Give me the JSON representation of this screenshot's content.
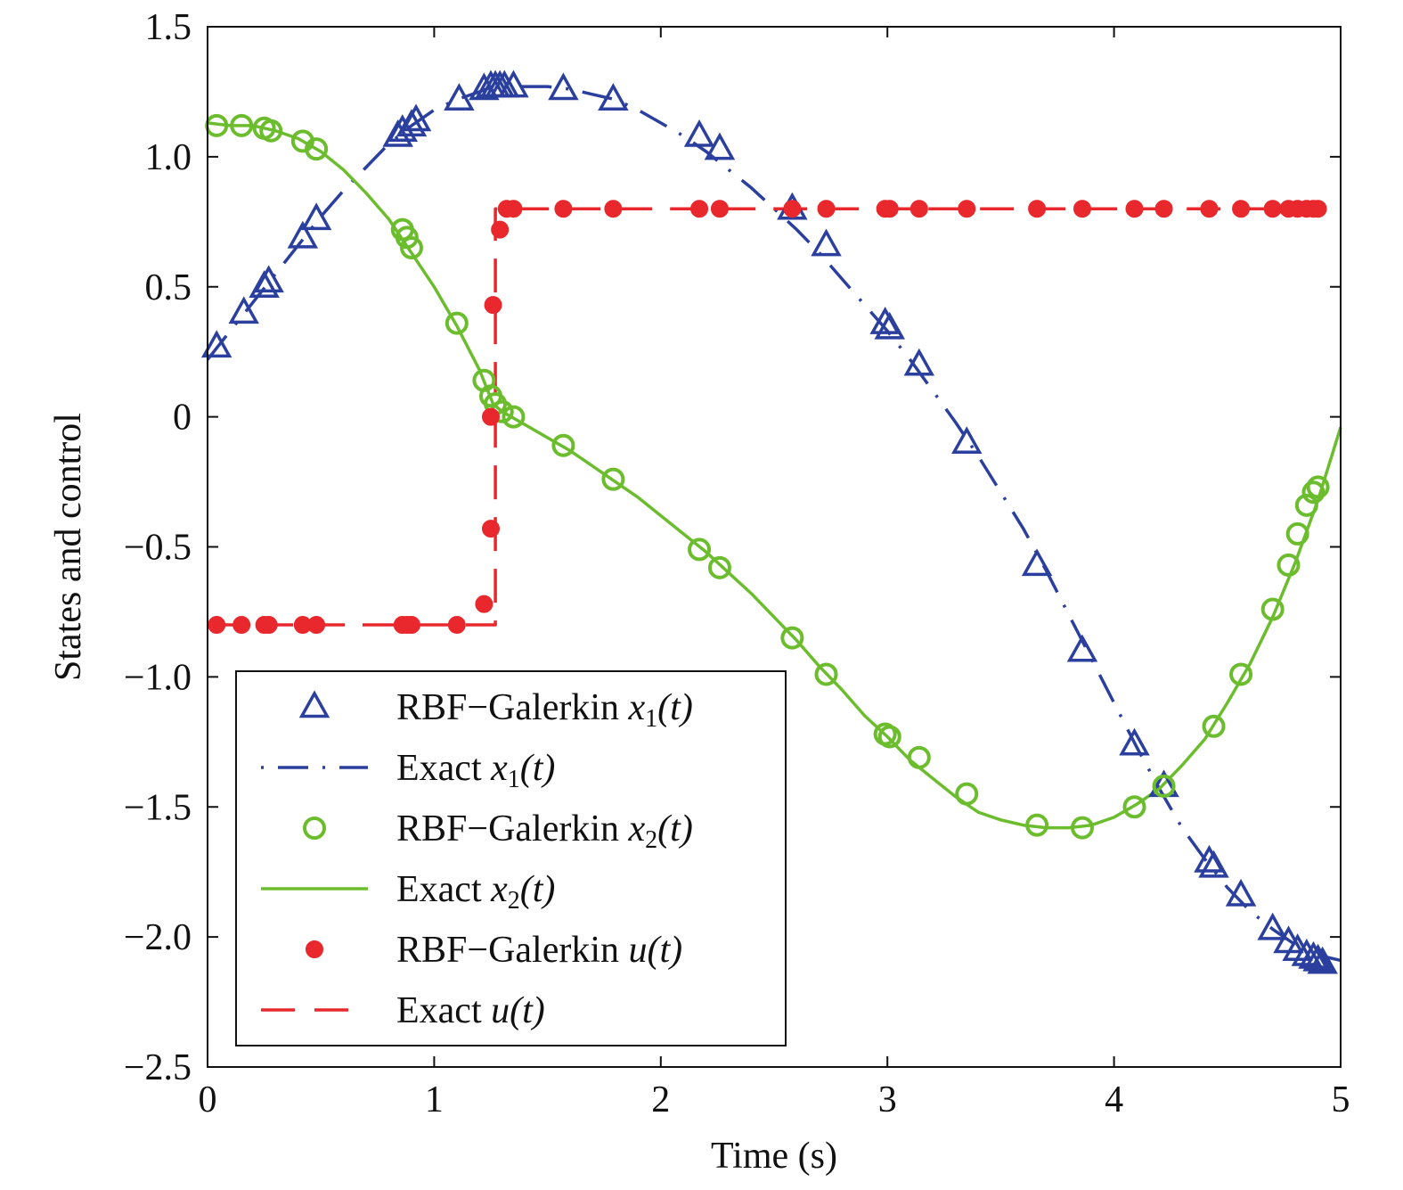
{
  "chart_data": {
    "type": "line",
    "xlabel": "Time (s)",
    "ylabel": "States and control",
    "xlim": [
      0,
      5
    ],
    "ylim": [
      -2.5,
      1.5
    ],
    "xticks": [
      0,
      1,
      2,
      3,
      4,
      5
    ],
    "xtick_labels": [
      "0",
      "1",
      "2",
      "3",
      "4",
      "5"
    ],
    "yticks": [
      1.5,
      1.0,
      0.5,
      0,
      -0.5,
      -1.0,
      -1.5,
      -2.0,
      -2.5
    ],
    "ytick_labels": [
      "1.5",
      "1.0",
      "0.5",
      "0",
      "−0.5",
      "−1.0",
      "−1.5",
      "−2.0",
      "−2.5"
    ],
    "grid": false,
    "legend_position": "bottom-left",
    "series": [
      {
        "name": "RBF−Galerkin x1(t)",
        "legend_main": "RBF−Galerkin ",
        "legend_var": "x",
        "legend_sub": "1",
        "legend_arg": "(t)",
        "style": "triangle-markers",
        "color": "#2b3f9e",
        "x": [
          0.04,
          0.16,
          0.25,
          0.27,
          0.42,
          0.48,
          0.84,
          0.86,
          0.9,
          0.92,
          1.11,
          1.22,
          1.25,
          1.27,
          1.29,
          1.31,
          1.35,
          1.57,
          1.79,
          2.17,
          2.26,
          2.58,
          2.73,
          2.99,
          3.01,
          3.14,
          3.35,
          3.66,
          3.86,
          4.09,
          4.22,
          4.42,
          4.44,
          4.56,
          4.7,
          4.77,
          4.81,
          4.85,
          4.88,
          4.9,
          4.92
        ],
        "y": [
          0.27,
          0.4,
          0.5,
          0.52,
          0.69,
          0.76,
          1.08,
          1.1,
          1.12,
          1.14,
          1.22,
          1.26,
          1.27,
          1.27,
          1.27,
          1.27,
          1.27,
          1.26,
          1.22,
          1.08,
          1.03,
          0.8,
          0.66,
          0.36,
          0.34,
          0.2,
          -0.1,
          -0.57,
          -0.9,
          -1.26,
          -1.42,
          -1.71,
          -1.73,
          -1.84,
          -1.97,
          -2.02,
          -2.05,
          -2.07,
          -2.08,
          -2.09,
          -2.1
        ]
      },
      {
        "name": "Exact x1(t)",
        "legend_main": "Exact ",
        "legend_var": "x",
        "legend_sub": "1",
        "legend_arg": "(t)",
        "style": "dash-dot",
        "color": "#2b3f9e",
        "x": [
          0,
          0.1,
          0.2,
          0.3,
          0.4,
          0.5,
          0.6,
          0.7,
          0.8,
          0.9,
          1.0,
          1.1,
          1.2,
          1.26,
          1.3,
          1.4,
          1.5,
          1.6,
          1.7,
          1.8,
          1.9,
          2.0,
          2.1,
          2.2,
          2.3,
          2.4,
          2.5,
          2.6,
          2.7,
          2.8,
          2.9,
          3.0,
          3.1,
          3.2,
          3.3,
          3.4,
          3.5,
          3.6,
          3.7,
          3.8,
          3.9,
          4.0,
          4.1,
          4.2,
          4.3,
          4.4,
          4.5,
          4.6,
          4.7,
          4.8,
          4.9,
          5.0
        ],
        "y": [
          0.22,
          0.33,
          0.44,
          0.55,
          0.66,
          0.77,
          0.87,
          0.96,
          1.05,
          1.12,
          1.18,
          1.22,
          1.25,
          1.27,
          1.27,
          1.27,
          1.27,
          1.26,
          1.24,
          1.22,
          1.18,
          1.13,
          1.08,
          1.02,
          0.95,
          0.88,
          0.8,
          0.72,
          0.63,
          0.53,
          0.43,
          0.33,
          0.22,
          0.1,
          -0.02,
          -0.15,
          -0.29,
          -0.43,
          -0.59,
          -0.76,
          -0.93,
          -1.1,
          -1.27,
          -1.43,
          -1.58,
          -1.7,
          -1.81,
          -1.9,
          -1.97,
          -2.03,
          -2.07,
          -2.09
        ]
      },
      {
        "name": "RBF−Galerkin x2(t)",
        "legend_main": "RBF−Galerkin ",
        "legend_var": "x",
        "legend_sub": "2",
        "legend_arg": "(t)",
        "style": "circle-markers",
        "color": "#6cbd2e",
        "x": [
          0.04,
          0.15,
          0.25,
          0.28,
          0.42,
          0.48,
          0.86,
          0.88,
          0.9,
          1.1,
          1.22,
          1.25,
          1.27,
          1.3,
          1.35,
          1.57,
          1.79,
          2.17,
          2.26,
          2.58,
          2.73,
          2.99,
          3.01,
          3.14,
          3.35,
          3.66,
          3.86,
          4.09,
          4.22,
          4.44,
          4.56,
          4.7,
          4.77,
          4.81,
          4.85,
          4.88,
          4.9
        ],
        "y": [
          1.12,
          1.12,
          1.11,
          1.1,
          1.06,
          1.03,
          0.72,
          0.69,
          0.65,
          0.36,
          0.14,
          0.08,
          0.05,
          0.02,
          0.0,
          -0.11,
          -0.24,
          -0.51,
          -0.58,
          -0.85,
          -0.99,
          -1.22,
          -1.23,
          -1.31,
          -1.45,
          -1.57,
          -1.58,
          -1.5,
          -1.42,
          -1.19,
          -0.99,
          -0.74,
          -0.57,
          -0.45,
          -0.34,
          -0.29,
          -0.27
        ]
      },
      {
        "name": "Exact x2(t)",
        "legend_main": "Exact ",
        "legend_var": "x",
        "legend_sub": "2",
        "legend_arg": "(t)",
        "style": "solid",
        "color": "#6cbd2e",
        "x": [
          0,
          0.1,
          0.2,
          0.3,
          0.4,
          0.5,
          0.6,
          0.7,
          0.8,
          0.9,
          1.0,
          1.1,
          1.2,
          1.26,
          1.3,
          1.4,
          1.5,
          1.6,
          1.7,
          1.8,
          1.9,
          2.0,
          2.1,
          2.2,
          2.3,
          2.4,
          2.5,
          2.6,
          2.7,
          2.8,
          2.9,
          3.0,
          3.1,
          3.2,
          3.3,
          3.4,
          3.5,
          3.6,
          3.7,
          3.8,
          3.9,
          4.0,
          4.1,
          4.2,
          4.3,
          4.4,
          4.5,
          4.6,
          4.7,
          4.8,
          4.9,
          5.0
        ],
        "y": [
          1.13,
          1.12,
          1.12,
          1.1,
          1.07,
          1.02,
          0.95,
          0.86,
          0.76,
          0.63,
          0.5,
          0.35,
          0.18,
          0.05,
          0.02,
          -0.03,
          -0.08,
          -0.13,
          -0.19,
          -0.25,
          -0.31,
          -0.38,
          -0.45,
          -0.52,
          -0.6,
          -0.68,
          -0.77,
          -0.86,
          -0.96,
          -1.05,
          -1.15,
          -1.23,
          -1.32,
          -1.39,
          -1.46,
          -1.52,
          -1.55,
          -1.57,
          -1.58,
          -1.58,
          -1.57,
          -1.54,
          -1.49,
          -1.43,
          -1.34,
          -1.24,
          -1.1,
          -0.95,
          -0.77,
          -0.56,
          -0.32,
          -0.04
        ]
      },
      {
        "name": "RBF−Galerkin u(t)",
        "legend_main": "RBF−Galerkin ",
        "legend_var": "u",
        "legend_sub": "",
        "legend_arg": "(t)",
        "style": "dot-markers",
        "color": "#e8282d",
        "x": [
          0.04,
          0.15,
          0.25,
          0.27,
          0.42,
          0.48,
          0.86,
          0.88,
          0.9,
          1.1,
          1.22,
          1.25,
          1.25,
          1.26,
          1.29,
          1.32,
          1.35,
          1.57,
          1.79,
          2.17,
          2.26,
          2.58,
          2.73,
          2.99,
          3.01,
          3.14,
          3.35,
          3.66,
          3.86,
          4.09,
          4.22,
          4.42,
          4.56,
          4.7,
          4.77,
          4.81,
          4.85,
          4.88,
          4.9
        ],
        "y": [
          -0.8,
          -0.8,
          -0.8,
          -0.8,
          -0.8,
          -0.8,
          -0.8,
          -0.8,
          -0.8,
          -0.8,
          -0.72,
          -0.43,
          0.0,
          0.43,
          0.72,
          0.8,
          0.8,
          0.8,
          0.8,
          0.8,
          0.8,
          0.8,
          0.8,
          0.8,
          0.8,
          0.8,
          0.8,
          0.8,
          0.8,
          0.8,
          0.8,
          0.8,
          0.8,
          0.8,
          0.8,
          0.8,
          0.8,
          0.8,
          0.8
        ]
      },
      {
        "name": "Exact u(t)",
        "legend_main": "Exact ",
        "legend_var": "u",
        "legend_sub": "",
        "legend_arg": "(t)",
        "style": "dashed",
        "color": "#e8282d",
        "x": [
          0,
          1.27,
          1.27,
          5.0
        ],
        "y": [
          -0.8,
          -0.8,
          0.8,
          0.8
        ]
      }
    ]
  }
}
